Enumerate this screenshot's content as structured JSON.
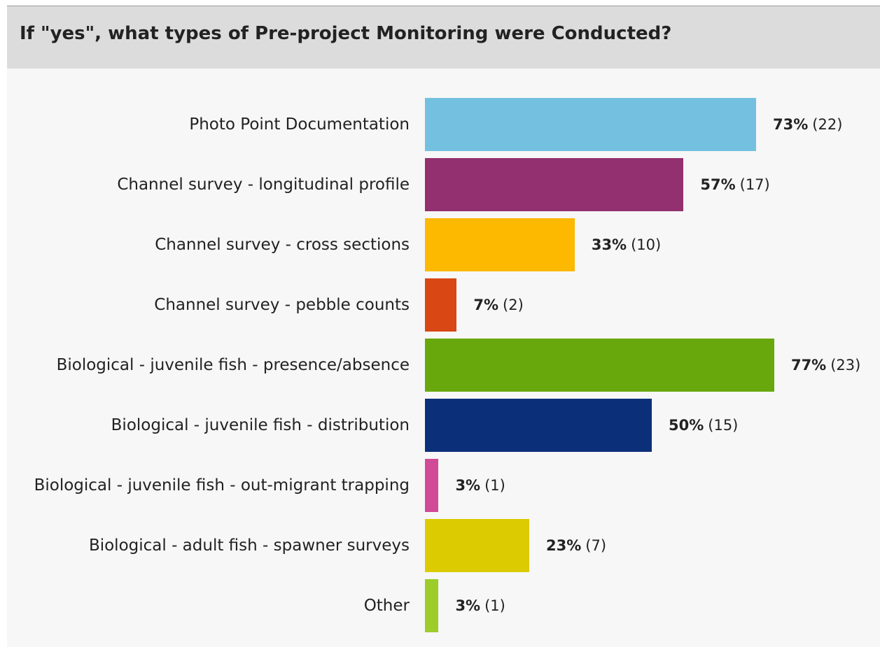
{
  "chart_data": {
    "type": "bar",
    "orientation": "horizontal",
    "title": "If \"yes\", what types of Pre-project Monitoring were Conducted?",
    "categories": [
      "Photo Point Documentation",
      "Channel survey - longitudinal profile",
      "Channel survey - cross sections",
      "Channel survey - pebble counts",
      "Biological - juvenile fish - presence/absence",
      "Biological - juvenile fish - distribution",
      "Biological - juvenile fish - out-migrant trapping",
      "Biological - adult fish - spawner surveys",
      "Other"
    ],
    "values": [
      73,
      57,
      33,
      7,
      77,
      50,
      3,
      23,
      3
    ],
    "value_labels": [
      "73%",
      "57%",
      "33%",
      "7%",
      "77%",
      "50%",
      "3%",
      "23%",
      "3%"
    ],
    "counts": [
      22,
      17,
      10,
      2,
      23,
      15,
      1,
      7,
      1
    ],
    "count_labels": [
      "(22)",
      "(17)",
      "(10)",
      "(2)",
      "(23)",
      "(15)",
      "(1)",
      "(7)",
      "(1)"
    ],
    "colors": [
      "#73c0e0",
      "#93306f",
      "#fdb800",
      "#d84714",
      "#68a80d",
      "#0c2f7a",
      "#d14a96",
      "#dbcb00",
      "#9ccd2a"
    ],
    "xlim": [
      0,
      100
    ]
  }
}
